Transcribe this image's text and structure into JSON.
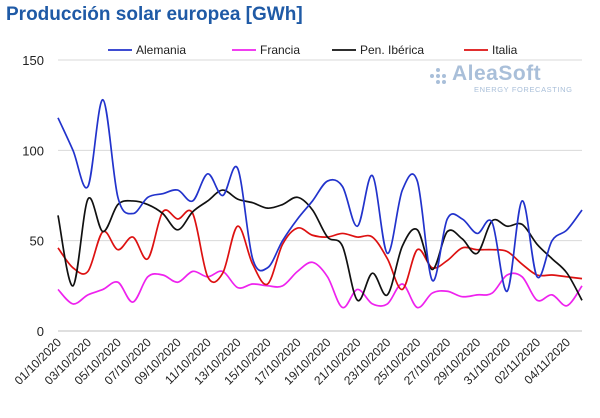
{
  "title": "Producción solar europea [GWh]",
  "logo": {
    "name": "AleaSoft",
    "tagline": "ENERGY FORECASTING"
  },
  "colors": {
    "Alemania": "#2233cc",
    "Francia": "#ee22ee",
    "Pen. Ibérica": "#111111",
    "Italia": "#dd1111",
    "title": "#1f5aa6",
    "grid": "#d9d9d9"
  },
  "chart_data": {
    "type": "line",
    "title": "Producción solar europea [GWh]",
    "xlabel": "",
    "ylabel": "",
    "ylim": [
      0,
      150
    ],
    "yticks": [
      0,
      50,
      100,
      150
    ],
    "grid": true,
    "legend": "top",
    "x": [
      "01/10/2020",
      "02/10/2020",
      "03/10/2020",
      "04/10/2020",
      "05/10/2020",
      "06/10/2020",
      "07/10/2020",
      "08/10/2020",
      "09/10/2020",
      "10/10/2020",
      "11/10/2020",
      "12/10/2020",
      "13/10/2020",
      "14/10/2020",
      "15/10/2020",
      "16/10/2020",
      "17/10/2020",
      "18/10/2020",
      "19/10/2020",
      "20/10/2020",
      "21/10/2020",
      "22/10/2020",
      "23/10/2020",
      "24/10/2020",
      "25/10/2020",
      "26/10/2020",
      "27/10/2020",
      "28/10/2020",
      "29/10/2020",
      "30/10/2020",
      "31/10/2020",
      "01/11/2020",
      "02/11/2020",
      "03/11/2020",
      "04/11/2020",
      "05/11/2020"
    ],
    "xtick_labels": [
      "01/10/2020",
      "03/10/2020",
      "05/10/2020",
      "07/10/2020",
      "09/10/2020",
      "11/10/2020",
      "13/10/2020",
      "15/10/2020",
      "17/10/2020",
      "19/10/2020",
      "21/10/2020",
      "23/10/2020",
      "25/10/2020",
      "27/10/2020",
      "29/10/2020",
      "31/10/2020",
      "02/11/2020",
      "04/11/2020"
    ],
    "series": [
      {
        "name": "Alemania",
        "values": [
          118,
          100,
          80,
          128,
          74,
          65,
          74,
          76,
          78,
          72,
          87,
          75,
          90,
          40,
          35,
          50,
          62,
          72,
          83,
          80,
          58,
          86,
          43,
          78,
          83,
          28,
          62,
          62,
          54,
          60,
          22,
          72,
          30,
          50,
          56,
          67
        ]
      },
      {
        "name": "Francia",
        "values": [
          23,
          15,
          20,
          23,
          27,
          16,
          30,
          31,
          27,
          33,
          30,
          33,
          24,
          26,
          25,
          25,
          33,
          38,
          30,
          13,
          23,
          15,
          15,
          26,
          13,
          21,
          22,
          19,
          20,
          21,
          31,
          30,
          17,
          20,
          14,
          25
        ]
      },
      {
        "name": "Pen. Ibérica",
        "values": [
          64,
          25,
          73,
          55,
          70,
          72,
          70,
          65,
          56,
          66,
          72,
          78,
          73,
          71,
          68,
          70,
          74,
          67,
          52,
          47,
          17,
          32,
          20,
          47,
          56,
          34,
          55,
          51,
          43,
          61,
          58,
          59,
          48,
          40,
          32,
          17
        ]
      },
      {
        "name": "Italia",
        "values": [
          46,
          35,
          33,
          55,
          45,
          52,
          40,
          66,
          62,
          65,
          30,
          32,
          58,
          37,
          26,
          48,
          57,
          53,
          52,
          54,
          52,
          52,
          40,
          23,
          45,
          35,
          39,
          46,
          45,
          45,
          44,
          37,
          31,
          31,
          30,
          29
        ]
      }
    ]
  }
}
